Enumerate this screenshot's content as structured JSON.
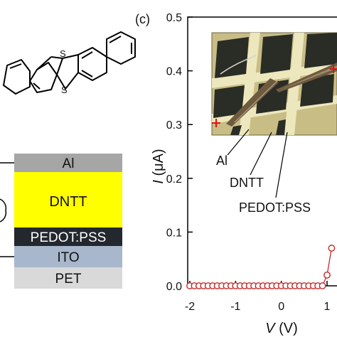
{
  "panel": {
    "label": "(c)",
    "partial_left_label": "("
  },
  "molecule": {
    "atom_labels": [
      "S",
      "S"
    ]
  },
  "device_stack": {
    "layers": [
      {
        "label": "Al",
        "color": "#a6a6a6"
      },
      {
        "label": "DNTT",
        "color": "#ffff00"
      },
      {
        "label": "PEDOT:PSS",
        "color": "#23282e"
      },
      {
        "label": "ITO",
        "color": "#a8b7cc"
      },
      {
        "label": "PET",
        "color": "#d9d9d9"
      }
    ]
  },
  "photo_callouts": [
    "Al",
    "DNTT",
    "PEDOT:PSS"
  ],
  "chart_data": {
    "type": "scatter",
    "title": "",
    "xlabel": "V (V)",
    "ylabel": "I (μA)",
    "xlim": [
      -2.1,
      1.2
    ],
    "ylim": [
      -0.01,
      0.5
    ],
    "x_ticks": [
      -2,
      -1,
      0,
      1
    ],
    "x_tick_labels": [
      "-2",
      "-1",
      "0",
      "1"
    ],
    "y_ticks": [
      0.0,
      0.1,
      0.2,
      0.3,
      0.4,
      0.5
    ],
    "y_tick_labels": [
      "0.0",
      "0.1",
      "0.2",
      "0.3",
      "0.4",
      "0.5"
    ],
    "marker": "open circle",
    "line_color": "#c8282a",
    "series": [
      {
        "x": [
          -2.0,
          -1.9,
          -1.8,
          -1.7,
          -1.6,
          -1.5,
          -1.4,
          -1.3,
          -1.2,
          -1.1,
          -1.0,
          -0.9,
          -0.8,
          -0.7,
          -0.6,
          -0.5,
          -0.4,
          -0.3,
          -0.2,
          -0.1,
          0.0,
          0.1,
          0.2,
          0.3,
          0.4,
          0.5,
          0.6,
          0.7,
          0.8,
          0.9,
          1.0,
          1.1
        ],
        "y": [
          0.0,
          0.0,
          0.0,
          0.0,
          0.0,
          0.0,
          0.0,
          0.0,
          0.0,
          0.0,
          0.0,
          0.0,
          0.0,
          0.0,
          0.0,
          0.0,
          0.0,
          0.0,
          0.0,
          0.0,
          0.0,
          0.0,
          0.0,
          0.0,
          0.0,
          0.0,
          0.0,
          0.0,
          0.0,
          0.0,
          0.02,
          0.07
        ]
      }
    ]
  }
}
